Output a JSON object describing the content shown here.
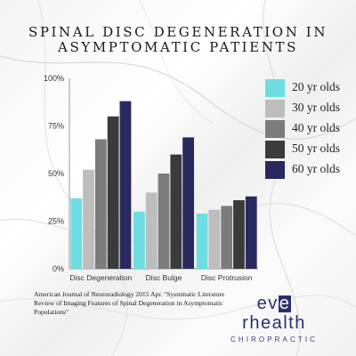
{
  "title": {
    "line1": "SPINAL DISC DEGENERATION IN",
    "line2": "ASYMPTOMATIC PATIENTS"
  },
  "chart_data": {
    "type": "bar",
    "categories": [
      "Disc Degeneration",
      "Disc Bulge",
      "Disc Protrusion"
    ],
    "series": [
      {
        "name": "20 yr olds",
        "color": "#6ddde2",
        "values": [
          37,
          30,
          29
        ]
      },
      {
        "name": "30 yr olds",
        "color": "#bdbdbd",
        "values": [
          52,
          40,
          31
        ]
      },
      {
        "name": "40 yr olds",
        "color": "#7c7c7c",
        "values": [
          68,
          50,
          33
        ]
      },
      {
        "name": "50 yr olds",
        "color": "#3b3b3b",
        "values": [
          80,
          60,
          36
        ]
      },
      {
        "name": "60 yr olds",
        "color": "#28295e",
        "values": [
          88,
          69,
          38
        ]
      }
    ],
    "yticks": [
      "0%",
      "25%",
      "50%",
      "75%",
      "100%"
    ],
    "ylim": [
      0,
      100
    ],
    "grid": false,
    "legend_position": "right"
  },
  "citation": "American Journal of Neuroradiology 2015 Apr. \"Systematic Literature Review of Imaging Features of Spinal Degeneration in Asymptomatic Populations\"",
  "logo": {
    "pre": "ev",
    "highlight": "e",
    "post": "rhealth",
    "sub": "CHIROPRACTIC"
  },
  "colors": {
    "axis": "#9a9a9a",
    "text": "#1a1a1a",
    "brand": "#2c2f6e"
  }
}
